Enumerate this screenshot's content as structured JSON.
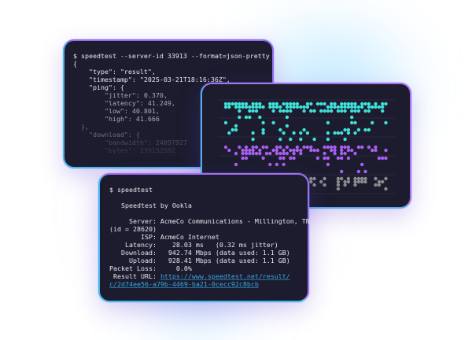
{
  "colors": {
    "panel_bg": "#1c1c2e",
    "cyan": "#3fe0d8",
    "purple": "#a95ef0",
    "gray": "#8a8a8e",
    "link": "#36a9e8"
  },
  "json_terminal": {
    "command": "$ speedtest --server-id 33913 --format=json-pretty",
    "lines": [
      "{",
      "    \"type\": \"result\",",
      "    \"timestamp\": \"2025-03-21T18:16:36Z\",",
      "    \"ping\": {",
      "        \"jitter\": 0.370,",
      "        \"latency\": 41.249,",
      "        \"low\": 40.801,",
      "        \"high\": 41.666",
      "  },",
      "    \"download\": {",
      "        \"bandwidth\": 24097927",
      "        \"bytes\": 239152592"
    ]
  },
  "chart_panel": {
    "icon": "dot-plot-icon",
    "series_colors": [
      "cyan",
      "purple",
      "gray"
    ]
  },
  "cli_terminal": {
    "command": "$ speedtest",
    "title": "   Speedtest by Ookla",
    "lines": [
      "     Server: AcmeCo Communications - Millington, TN",
      "(id = 28620)",
      "        ISP: AcmeCo Internet",
      "    Latency:    28.03 ms   (0.32 ms jitter)",
      "   Download:   942.74 Mbps (data used: 1.1 GB)",
      "     Upload:   928.41 Mbps (data used: 1.1 GB)",
      "Packet Loss:     0.0%"
    ],
    "result_label": " Result URL: ",
    "url_line1": "https://www.speedtest.net/result/",
    "url_line2": "c/2d74ee56-a79b-4469-ba21-0cecc92c8bcb"
  }
}
